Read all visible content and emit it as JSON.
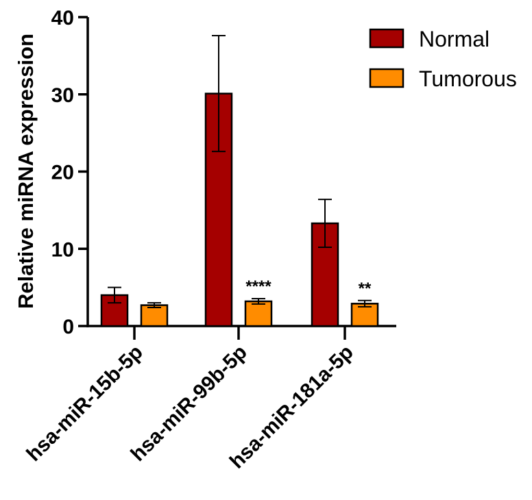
{
  "chart_data": {
    "type": "bar",
    "title": "",
    "xlabel": "",
    "ylabel": "Relative miRNA expression",
    "ylim": [
      0,
      40
    ],
    "yticks": [
      0,
      10,
      20,
      30,
      40
    ],
    "categories": [
      "hsa-miR-15b-5p",
      "hsa-miR-99b-5p",
      "hsa-miR-181a-5p"
    ],
    "series": [
      {
        "name": "Normal",
        "color": "#a50000",
        "values": [
          4.0,
          30.1,
          13.3
        ],
        "error": [
          1.0,
          7.5,
          3.1
        ]
      },
      {
        "name": "Tumorous",
        "color": "#ff8c00",
        "values": [
          2.7,
          3.2,
          2.9
        ],
        "error": [
          0.3,
          0.35,
          0.4
        ]
      }
    ],
    "annotations": [
      {
        "category": "hsa-miR-99b-5p",
        "series": "Tumorous",
        "text": "****"
      },
      {
        "category": "hsa-miR-181a-5p",
        "series": "Tumorous",
        "text": "**"
      }
    ],
    "legend": "top-right",
    "grid": false
  }
}
